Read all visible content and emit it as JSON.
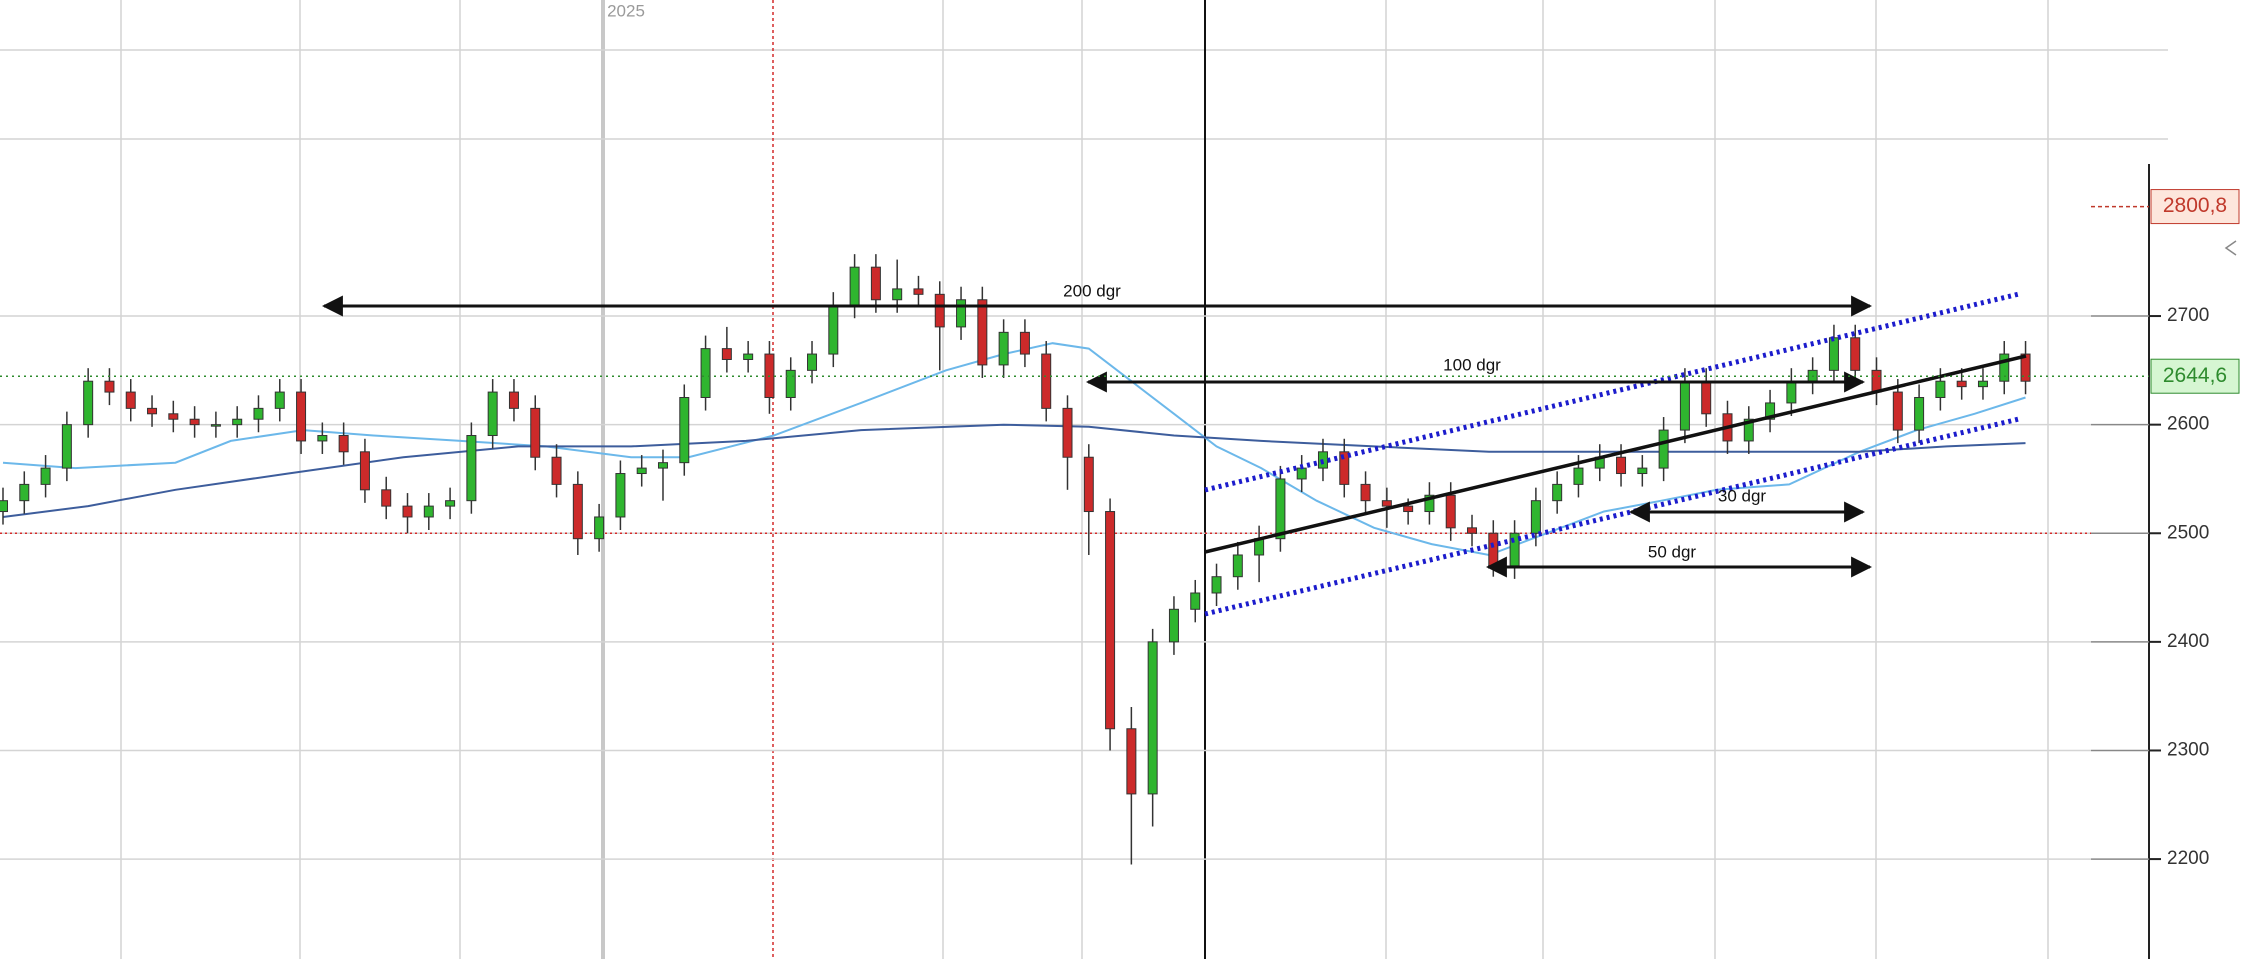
{
  "chart_data": {
    "type": "candlestick",
    "year_label": "2025",
    "ylim": [
      2108,
      2991
    ],
    "yticks": [
      2200,
      2300,
      2400,
      2500,
      2600,
      2700
    ],
    "grid": true,
    "up_color": "#2fb52f",
    "down_color": "#cc2a2a",
    "open": [
      2520,
      2530,
      2545,
      2560,
      2600,
      2640,
      2630,
      2615,
      2610,
      2605,
      2600,
      2600,
      2605,
      2615,
      2630,
      2585,
      2590,
      2575,
      2540,
      2525,
      2515,
      2525,
      2530,
      2590,
      2630,
      2615,
      2570,
      2545,
      2495,
      2515,
      2555,
      2560,
      2565,
      2625,
      2670,
      2660,
      2665,
      2625,
      2650,
      2665,
      2710,
      2745,
      2715,
      2725,
      2720,
      2690,
      2715,
      2655,
      2685,
      2665,
      2615,
      2570,
      2520,
      2320,
      2260,
      2400,
      2430,
      2445,
      2460,
      2480,
      2495,
      2550,
      2560,
      2575,
      2545,
      2530,
      2525,
      2520,
      2535,
      2505,
      2500,
      2470,
      2500,
      2530,
      2545,
      2560,
      2570,
      2555,
      2560,
      2595,
      2640,
      2610,
      2585,
      2605,
      2620,
      2640,
      2650,
      2680,
      2650,
      2630,
      2595,
      2625,
      2640,
      2635,
      2640,
      2665
    ],
    "high": [
      2542,
      2557,
      2572,
      2612,
      2652,
      2652,
      2642,
      2627,
      2622,
      2617,
      2612,
      2617,
      2627,
      2642,
      2642,
      2602,
      2602,
      2587,
      2552,
      2537,
      2537,
      2542,
      2602,
      2642,
      2642,
      2627,
      2582,
      2557,
      2527,
      2567,
      2572,
      2577,
      2637,
      2682,
      2690,
      2677,
      2677,
      2662,
      2677,
      2722,
      2757,
      2757,
      2752,
      2737,
      2732,
      2727,
      2727,
      2697,
      2697,
      2677,
      2627,
      2582,
      2532,
      2340,
      2412,
      2442,
      2457,
      2472,
      2492,
      2507,
      2562,
      2572,
      2587,
      2587,
      2557,
      2542,
      2532,
      2547,
      2547,
      2517,
      2512,
      2512,
      2542,
      2557,
      2572,
      2582,
      2582,
      2572,
      2607,
      2652,
      2652,
      2622,
      2617,
      2632,
      2652,
      2662,
      2692,
      2692,
      2662,
      2642,
      2637,
      2652,
      2652,
      2652,
      2677,
      2677
    ],
    "low": [
      2508,
      2518,
      2533,
      2548,
      2588,
      2618,
      2603,
      2598,
      2593,
      2588,
      2588,
      2588,
      2593,
      2603,
      2573,
      2573,
      2563,
      2528,
      2513,
      2500,
      2503,
      2513,
      2518,
      2578,
      2603,
      2558,
      2533,
      2480,
      2483,
      2503,
      2543,
      2530,
      2553,
      2613,
      2648,
      2648,
      2610,
      2613,
      2638,
      2653,
      2698,
      2703,
      2703,
      2708,
      2650,
      2678,
      2643,
      2643,
      2653,
      2603,
      2540,
      2480,
      2300,
      2195,
      2230,
      2388,
      2418,
      2433,
      2448,
      2455,
      2483,
      2538,
      2548,
      2533,
      2518,
      2505,
      2508,
      2508,
      2493,
      2488,
      2460,
      2458,
      2488,
      2518,
      2533,
      2548,
      2543,
      2543,
      2548,
      2583,
      2598,
      2573,
      2573,
      2593,
      2608,
      2628,
      2638,
      2638,
      2618,
      2583,
      2583,
      2613,
      2623,
      2623,
      2628,
      2628
    ],
    "close": [
      2530,
      2545,
      2560,
      2600,
      2640,
      2630,
      2615,
      2610,
      2605,
      2600,
      2600,
      2605,
      2615,
      2630,
      2585,
      2590,
      2575,
      2540,
      2525,
      2515,
      2525,
      2530,
      2590,
      2630,
      2615,
      2570,
      2545,
      2495,
      2515,
      2555,
      2560,
      2565,
      2625,
      2670,
      2660,
      2665,
      2625,
      2650,
      2665,
      2710,
      2745,
      2715,
      2725,
      2720,
      2690,
      2715,
      2655,
      2685,
      2665,
      2615,
      2570,
      2520,
      2320,
      2260,
      2400,
      2430,
      2445,
      2460,
      2480,
      2495,
      2550,
      2560,
      2575,
      2545,
      2530,
      2525,
      2520,
      2535,
      2505,
      2500,
      2470,
      2500,
      2530,
      2545,
      2560,
      2570,
      2555,
      2560,
      2595,
      2640,
      2610,
      2585,
      2605,
      2620,
      2640,
      2650,
      2680,
      2650,
      2630,
      2595,
      2625,
      2640,
      2635,
      2640,
      2665,
      2640
    ],
    "moving_averages": [
      {
        "color": "#6cb8ea",
        "x": [
          0,
          3.4,
          8.1,
          10.7,
          14.1,
          17.4,
          21.5,
          25.5,
          29.5,
          32.2,
          36.2,
          40.3,
          44.3,
          47,
          49.3,
          51,
          53,
          55,
          57,
          59.1,
          61.7,
          64.4,
          67.1,
          69.8,
          72.5,
          75.2,
          77.9,
          80.5,
          83.9,
          87.2,
          89.9,
          92.6,
          95
        ],
        "values": [
          2565,
          2560,
          2565,
          2585,
          2595,
          2590,
          2585,
          2580,
          2570,
          2570,
          2590,
          2620,
          2650,
          2665,
          2675,
          2670,
          2640,
          2610,
          2580,
          2560,
          2530,
          2505,
          2490,
          2480,
          2500,
          2520,
          2530,
          2540,
          2545,
          2575,
          2595,
          2610,
          2625
        ]
      },
      {
        "color": "#3d5d9c",
        "x": [
          0,
          4,
          8.1,
          13.4,
          18.8,
          24.2,
          29.5,
          34.9,
          40.3,
          47,
          51,
          55,
          59.1,
          64.4,
          69.8,
          75.2,
          80.5,
          87.2,
          91.3,
          95
        ],
        "values": [
          2515,
          2525,
          2540,
          2555,
          2570,
          2580,
          2580,
          2585,
          2595,
          2600,
          2598,
          2590,
          2585,
          2580,
          2575,
          2575,
          2575,
          2575,
          2580,
          2583
        ]
      }
    ],
    "reference_lines": [
      {
        "value": 2500,
        "color": "#d42a2a"
      }
    ],
    "price_labels": [
      {
        "value": 2800.8,
        "label": "2800,8",
        "color": "#c0392b",
        "bg": "#fde6dc"
      },
      {
        "value": 2644.6,
        "label": "2644,6",
        "color": "#2e8b2e",
        "bg": "#d6f6d2"
      }
    ],
    "annotations": [
      "200  dgr",
      "100  dgr",
      "30  dgr",
      "50  dgr"
    ]
  }
}
